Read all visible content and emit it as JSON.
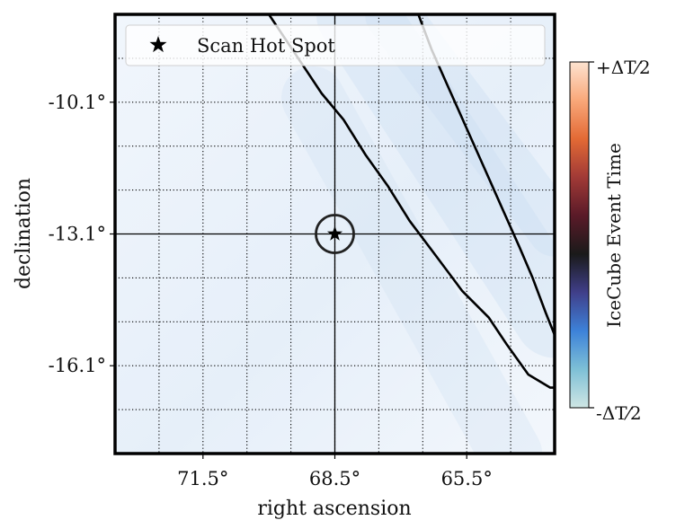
{
  "chart_data": {
    "type": "scatter",
    "title": "",
    "xlabel": "right ascension",
    "ylabel": "declination",
    "xlim": [
      73.5,
      63.5
    ],
    "ylim": [
      -18.1,
      -8.1
    ],
    "x_inverted": true,
    "x_ticks": [
      71.5,
      68.5,
      65.5
    ],
    "x_tick_labels": [
      "71.5°",
      "68.5°",
      "65.5°"
    ],
    "y_ticks": [
      -10.1,
      -13.1,
      -16.1
    ],
    "y_tick_labels": [
      "-10.1°",
      "-13.1°",
      "-16.1°"
    ],
    "grid": true,
    "grid_style": "dotted",
    "background_colormap_fill": "light blue",
    "legend": {
      "placement": "top-left",
      "entries": [
        {
          "marker": "star",
          "label": "Scan Hot Spot"
        }
      ]
    },
    "hot_spot": {
      "ra": 68.5,
      "dec": -13.1
    },
    "hot_spot_circle_radius_deg": 0.43,
    "crosshair": {
      "ra": 68.5,
      "dec": -13.1
    },
    "contours": [
      {
        "name": "",
        "points": [
          [
            70.0,
            -8.1
          ],
          [
            69.6,
            -8.7
          ],
          [
            69.2,
            -9.3
          ],
          [
            68.8,
            -9.9
          ],
          [
            68.3,
            -10.5
          ],
          [
            67.8,
            -11.3
          ],
          [
            67.3,
            -12.0
          ],
          [
            66.8,
            -12.8
          ],
          [
            66.2,
            -13.6
          ],
          [
            65.6,
            -14.4
          ],
          [
            65.0,
            -15.0
          ],
          [
            64.6,
            -15.6
          ],
          [
            64.1,
            -16.3
          ],
          [
            63.6,
            -16.6
          ],
          [
            63.5,
            -16.6
          ]
        ]
      },
      {
        "name": "",
        "points": [
          [
            66.6,
            -8.1
          ],
          [
            66.3,
            -8.9
          ],
          [
            65.9,
            -9.8
          ],
          [
            65.5,
            -10.7
          ],
          [
            65.1,
            -11.6
          ],
          [
            64.7,
            -12.5
          ],
          [
            64.3,
            -13.4
          ],
          [
            64.0,
            -14.1
          ],
          [
            63.7,
            -14.9
          ],
          [
            63.5,
            -15.4
          ]
        ]
      }
    ],
    "colorbar": {
      "label": "IceCube Event Time",
      "top_label": "+ΔT⁄2",
      "bottom_label": "-ΔT⁄2",
      "colors_bottom_to_top": [
        "#cfe6e4",
        "#7ec0d6",
        "#3d82d9",
        "#403f8a",
        "#1a1a1a",
        "#5a1a28",
        "#a13a36",
        "#e36a35",
        "#f9a87a",
        "#fde3d0"
      ]
    }
  }
}
